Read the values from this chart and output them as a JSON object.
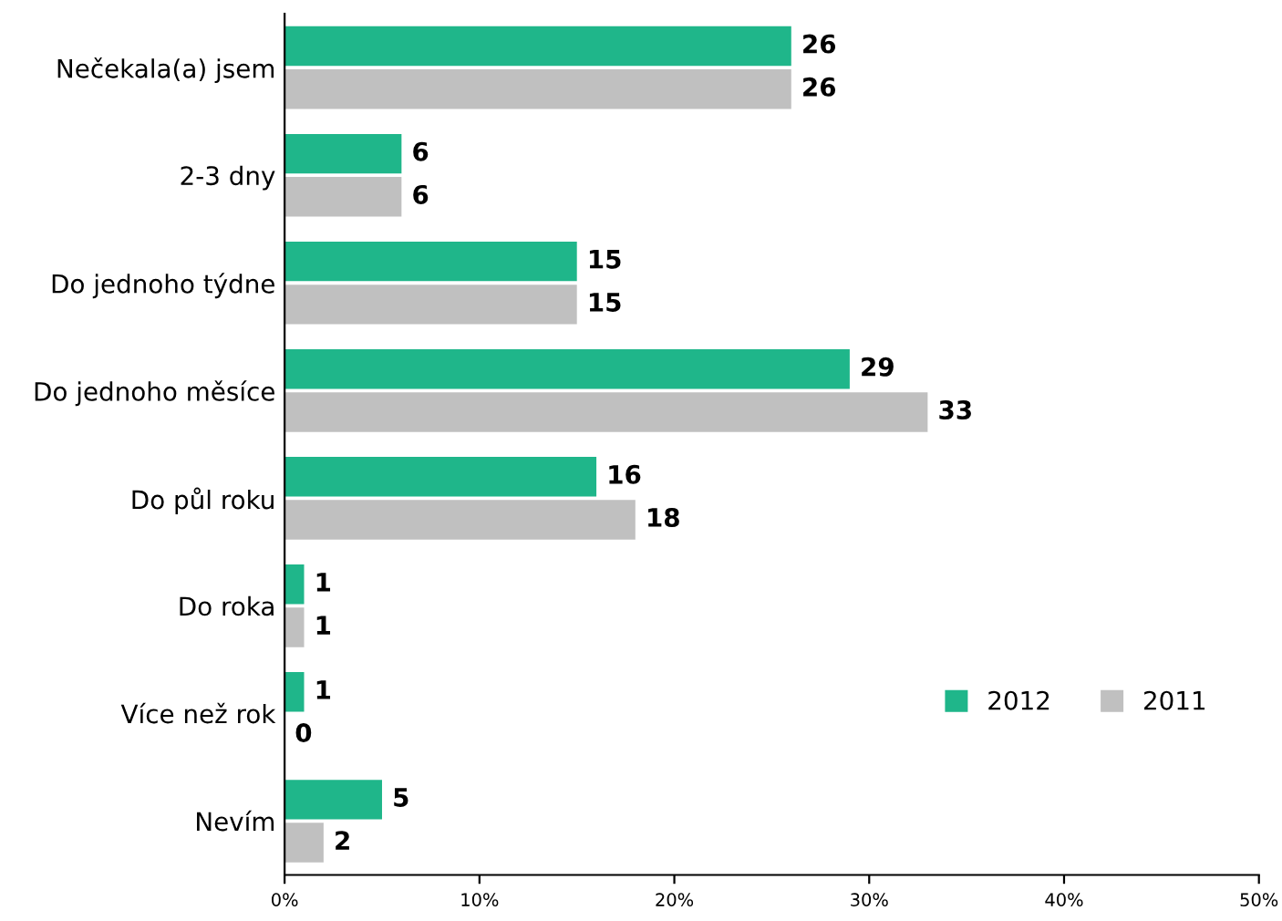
{
  "chart_data": {
    "type": "bar",
    "orientation": "horizontal",
    "categories": [
      "Nečekala(a) jsem",
      "2-3 dny",
      "Do jednoho týdne",
      "Do jednoho měsíce",
      "Do půl roku",
      "Do roka",
      "Více než rok",
      "Nevím"
    ],
    "series": [
      {
        "name": "2012",
        "color": "#1fb68a",
        "values": [
          26,
          6,
          15,
          29,
          16,
          1,
          1,
          5
        ]
      },
      {
        "name": "2011",
        "color": "#c0c0c0",
        "values": [
          26,
          6,
          15,
          33,
          18,
          1,
          0,
          2
        ]
      }
    ],
    "xlim": [
      0,
      50
    ],
    "xticks": [
      {
        "value": 0,
        "label": "0%"
      },
      {
        "value": 10,
        "label": "10%"
      },
      {
        "value": 20,
        "label": "20%"
      },
      {
        "value": 30,
        "label": "30%"
      },
      {
        "value": 40,
        "label": "40%"
      },
      {
        "value": 50,
        "label": "50%"
      }
    ],
    "data_labels": true,
    "legend": "right",
    "grid": false
  }
}
